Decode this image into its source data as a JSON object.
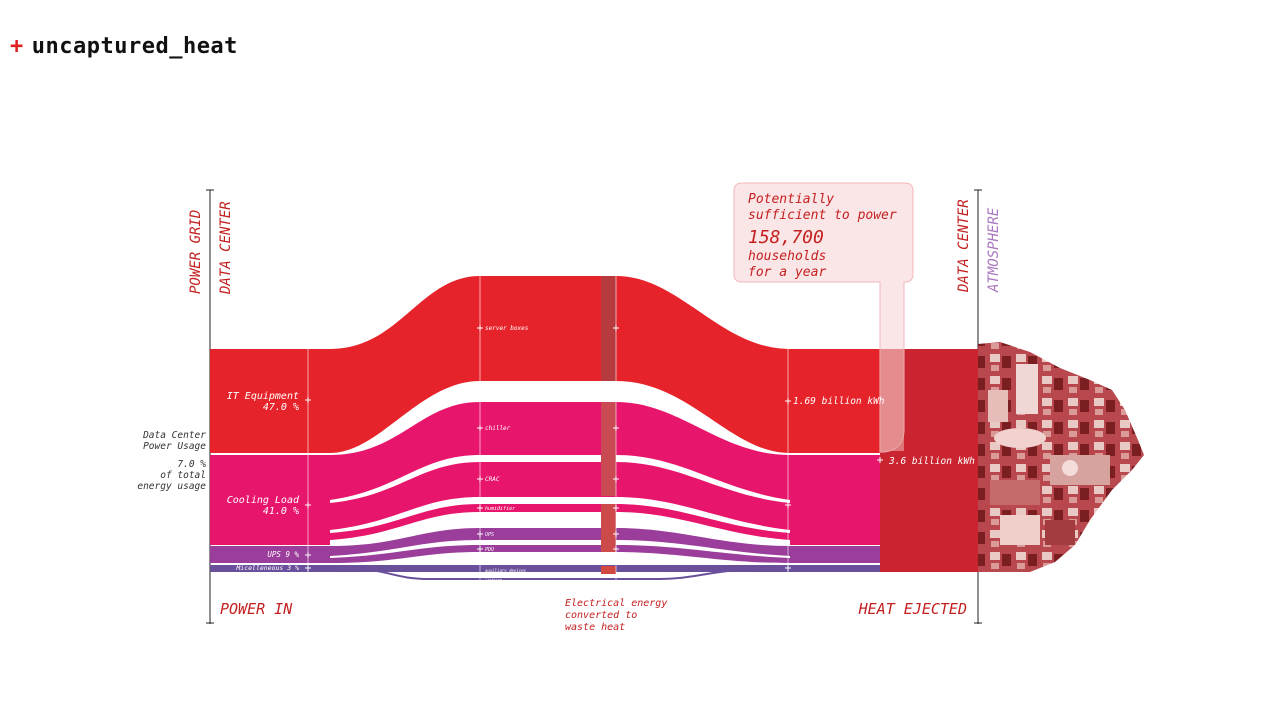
{
  "header": {
    "plus": "+",
    "title": "uncaptured_heat"
  },
  "colors": {
    "it": "#e6232a",
    "cooling": "#e8156c",
    "ups": "#9b3d9a",
    "misc": "#6a4f9a",
    "heat": "#c9242f",
    "axis_red": "#c42020",
    "atmosphere": "#a877c0"
  },
  "axes": {
    "left_top_a": "POWER GRID",
    "left_top_b": "DATA CENTER",
    "left_bottom": "POWER IN",
    "right_top_a": "DATA CENTER",
    "right_top_b": "ATMOSPHERE",
    "right_bottom": "HEAT EJECTED"
  },
  "left_notes": {
    "usage_1": "Data Center",
    "usage_2": "Power Usage",
    "share_1": "7.0 %",
    "share_2": "of total",
    "share_3": "energy usage"
  },
  "sources": {
    "it_1": "IT Equipment",
    "it_2": "47.0 %",
    "cooling_1": "Cooling Load",
    "cooling_2": "41.0 %",
    "ups": "UPS 9 %",
    "misc": "Micelleneous 3 %"
  },
  "middle": {
    "server": "server boxes",
    "chiller": "chiller",
    "crac": "CRAC",
    "humidifier": "humidifier",
    "ups": "UPS",
    "pdu": "PDU",
    "aux": "auxiliary devices",
    "lights": "lighting",
    "caption_1": "Electrical energy",
    "caption_2": "converted to",
    "caption_3": "waste heat"
  },
  "outputs": {
    "kwh_it": "1.69 billion kWh",
    "kwh_total": "3.6 billion kWh"
  },
  "callout": {
    "line1": "Potentially",
    "line2": "sufficient to power",
    "number": "158,700",
    "line3": "households",
    "line4": "for a year"
  }
}
